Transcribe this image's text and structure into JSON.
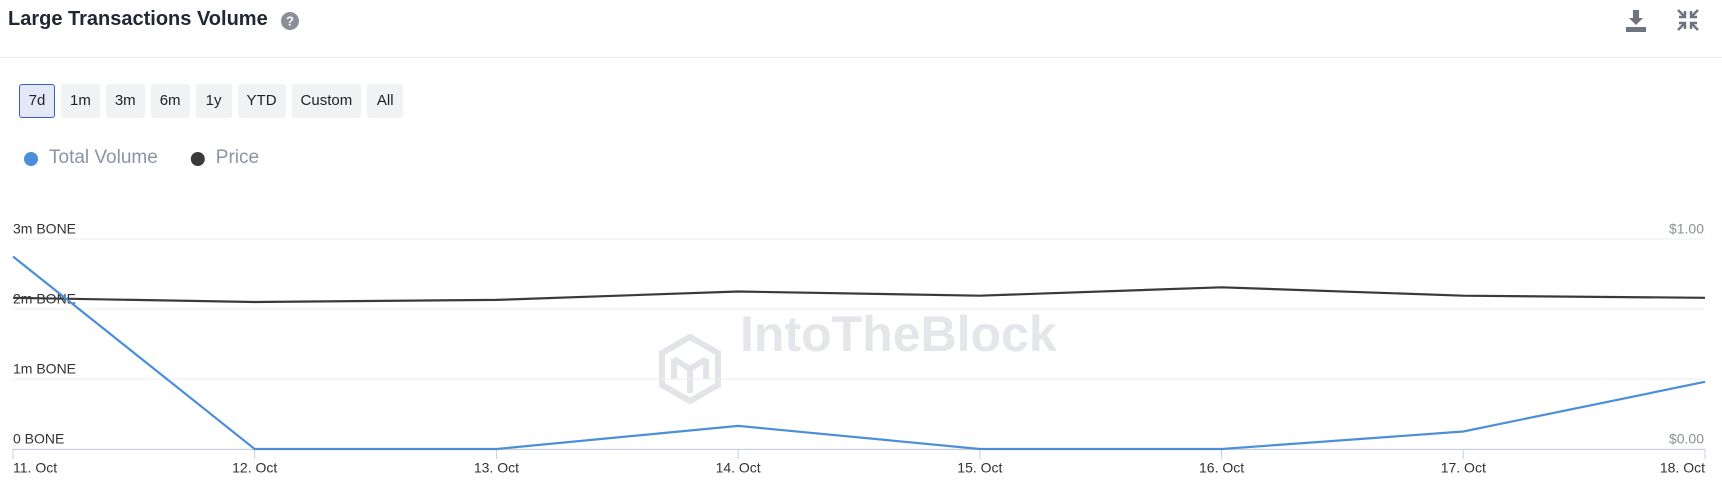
{
  "header": {
    "title": "Large Transactions Volume"
  },
  "range_buttons": {
    "options": [
      "7d",
      "1m",
      "3m",
      "6m",
      "1y",
      "YTD",
      "Custom",
      "All"
    ],
    "active_index": 0
  },
  "watermark": "IntoTheBlock",
  "chart_data": {
    "type": "line",
    "categories": [
      "11. Oct",
      "12. Oct",
      "13. Oct",
      "14. Oct",
      "15. Oct",
      "16. Oct",
      "17. Oct",
      "18. Oct"
    ],
    "series": [
      {
        "name": "Total Volume",
        "color": "#4a8fd8",
        "values": [
          2750000,
          0,
          0,
          330000,
          0,
          0,
          250000,
          960000
        ]
      },
      {
        "name": "Price",
        "color": "#3a3a3a",
        "axis": "y2",
        "values": [
          0.72,
          0.7,
          0.71,
          0.75,
          0.73,
          0.77,
          0.73,
          0.72
        ]
      }
    ],
    "ylim": [
      0,
      3000000
    ],
    "yticks": [
      {
        "value": 0,
        "label": "0 BONE"
      },
      {
        "value": 1000000,
        "label": "1m BONE"
      },
      {
        "value": 2000000,
        "label": "2m BONE"
      },
      {
        "value": 3000000,
        "label": "3m BONE"
      }
    ],
    "y2lim": [
      0,
      1
    ],
    "y2ticks": [
      {
        "value": 0,
        "label": "$0.00"
      },
      {
        "value": 1,
        "label": "$1.00"
      }
    ],
    "grid": true,
    "legend": "top-left"
  }
}
